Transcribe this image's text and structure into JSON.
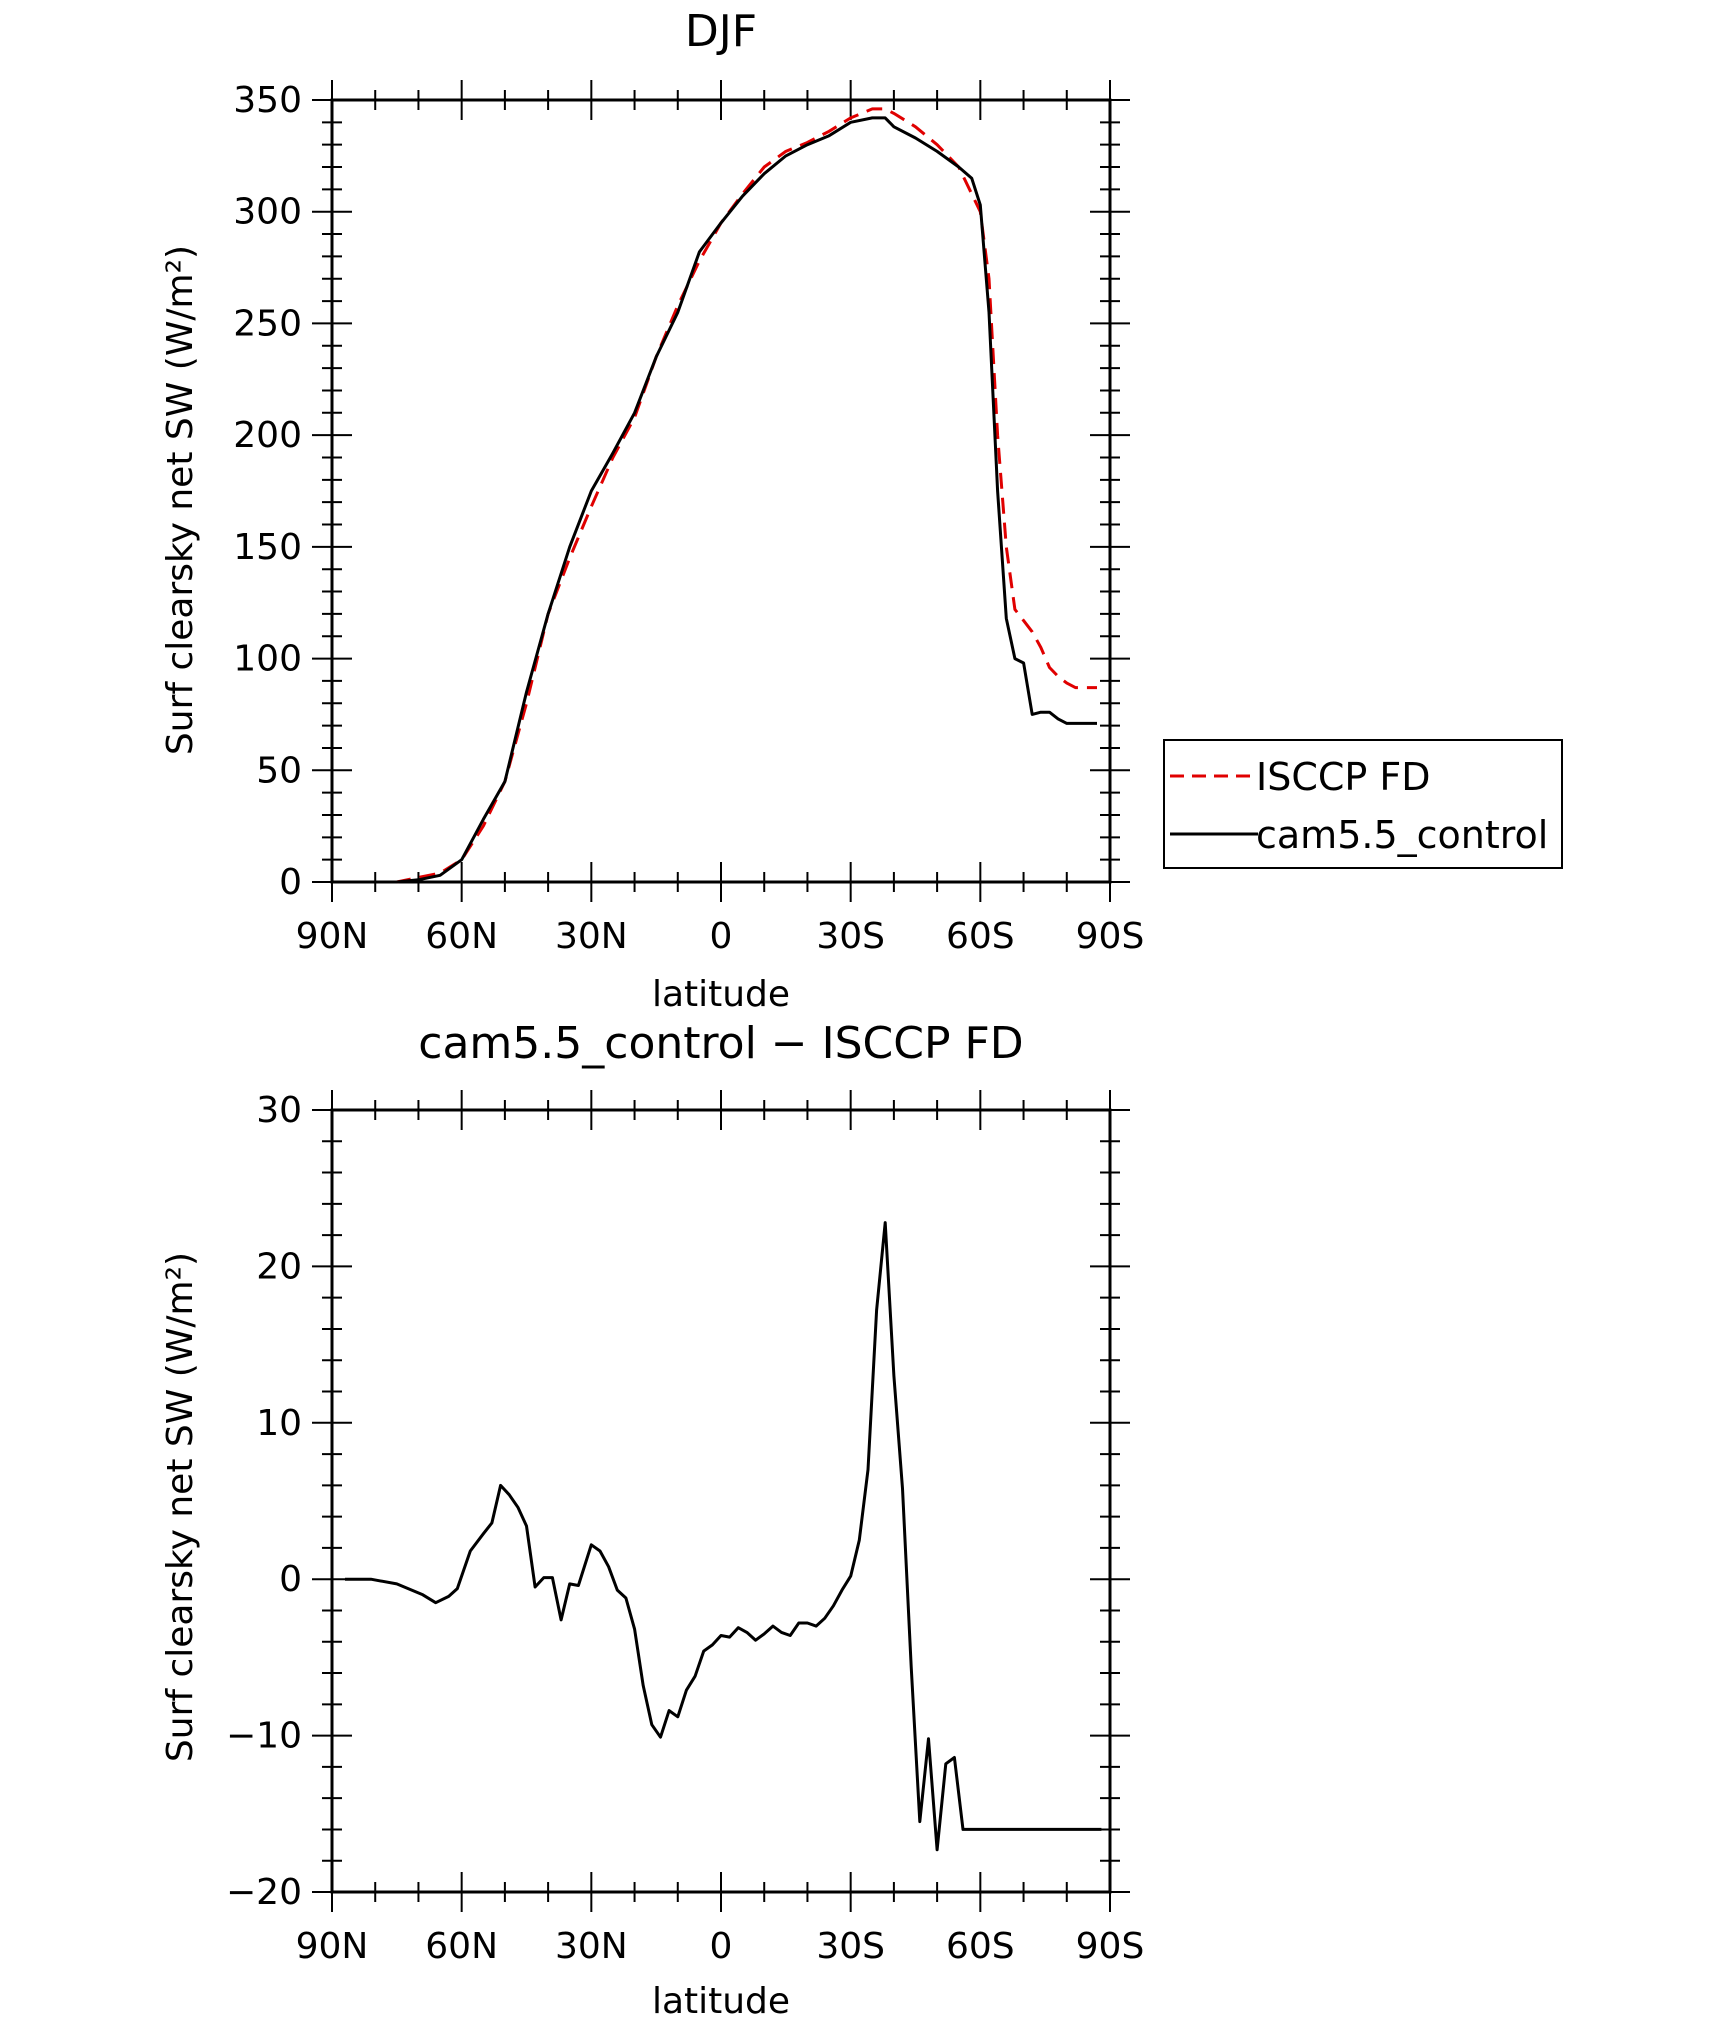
{
  "chart_data": [
    {
      "type": "line",
      "title": "DJF",
      "xlabel": "latitude",
      "ylabel": "Surf clearsky net SW (W/m²)",
      "ylim": [
        0,
        350
      ],
      "yticks": [
        0,
        50,
        100,
        150,
        200,
        250,
        300,
        350
      ],
      "xticks": [
        {
          "value": 90,
          "label": "90N"
        },
        {
          "value": 60,
          "label": "60N"
        },
        {
          "value": 30,
          "label": "30N"
        },
        {
          "value": 0,
          "label": "0"
        },
        {
          "value": -30,
          "label": "30S"
        },
        {
          "value": -60,
          "label": "60S"
        },
        {
          "value": -90,
          "label": "90S"
        }
      ],
      "xlim": [
        90,
        -90
      ],
      "legend_position": "right",
      "series": [
        {
          "name": "ISCCP FD",
          "color": "#e00000",
          "dash": "dashed",
          "x": [
            87,
            80,
            75,
            70,
            65,
            60,
            55,
            50,
            45,
            40,
            35,
            30,
            25,
            20,
            15,
            10,
            5,
            0,
            -5,
            -10,
            -15,
            -20,
            -25,
            -30,
            -35,
            -38,
            -40,
            -45,
            -50,
            -55,
            -60,
            -62,
            -64,
            -66,
            -68,
            -70,
            -72,
            -74,
            -76,
            -78,
            -80,
            -82,
            -84,
            -87
          ],
          "y": [
            0,
            0,
            0,
            2,
            4,
            10,
            25,
            45,
            80,
            120,
            145,
            168,
            190,
            208,
            235,
            258,
            278,
            295,
            308,
            320,
            327,
            331,
            336,
            342,
            346,
            346,
            344,
            338,
            330,
            320,
            300,
            270,
            200,
            150,
            122,
            117,
            112,
            105,
            96,
            92,
            89,
            87,
            87,
            87
          ]
        },
        {
          "name": "cam5.5_control",
          "color": "#000000",
          "dash": "solid",
          "x": [
            87,
            80,
            75,
            70,
            65,
            60,
            55,
            50,
            45,
            40,
            35,
            30,
            25,
            20,
            15,
            10,
            5,
            0,
            -5,
            -10,
            -15,
            -20,
            -25,
            -30,
            -35,
            -38,
            -40,
            -45,
            -50,
            -55,
            -58,
            -60,
            -62,
            -64,
            -66,
            -68,
            -70,
            -72,
            -74,
            -76,
            -78,
            -80,
            -82,
            -84,
            -87
          ],
          "y": [
            0,
            0,
            0,
            1,
            3,
            10,
            28,
            45,
            85,
            120,
            150,
            175,
            192,
            210,
            235,
            255,
            282,
            295,
            307,
            317,
            325,
            330,
            334,
            340,
            342,
            342,
            338,
            333,
            327,
            320,
            315,
            303,
            255,
            175,
            118,
            100,
            98,
            75,
            76,
            76,
            73,
            71,
            71,
            71,
            71
          ]
        }
      ]
    },
    {
      "type": "line",
      "title": "cam5.5_control − ISCCP FD",
      "xlabel": "latitude",
      "ylabel": "Surf clearsky net SW (W/m²)",
      "ylim": [
        -20,
        30
      ],
      "yticks": [
        -20,
        -10,
        0,
        10,
        20,
        30
      ],
      "xlim": [
        90,
        -90
      ],
      "series": [
        {
          "name": "",
          "color": "#000000",
          "dash": "solid",
          "x": [
            87,
            81,
            75,
            69,
            66,
            63,
            61,
            58,
            55,
            53,
            51,
            49,
            47,
            45,
            43,
            41,
            39,
            37,
            35,
            33,
            30,
            28,
            26,
            24,
            22,
            20,
            18,
            16,
            14,
            12,
            10,
            8,
            6,
            4,
            2,
            0,
            -2,
            -4,
            -6,
            -8,
            -10,
            -12,
            -14,
            -16,
            -18,
            -20,
            -22,
            -24,
            -26,
            -28,
            -30,
            -32,
            -34,
            -36,
            -38,
            -40,
            -42,
            -44,
            -46,
            -48,
            -50,
            -52,
            -54,
            -56,
            -58,
            -60,
            -62,
            -64,
            -66,
            -68,
            -70,
            -72,
            -74,
            -76,
            -78,
            -80,
            -82,
            -84,
            -86,
            -88
          ],
          "y": [
            0,
            0,
            -0.3,
            -1,
            -1.5,
            -1.1,
            -0.6,
            1.8,
            2.9,
            3.6,
            6.0,
            5.4,
            4.6,
            3.4,
            -0.5,
            0.1,
            0.1,
            -2.6,
            -0.3,
            -0.4,
            2.2,
            1.8,
            0.8,
            -0.7,
            -1.2,
            -3.2,
            -6.8,
            -9.3,
            -10.1,
            -8.4,
            -8.8,
            -7.1,
            -6.2,
            -4.6,
            -4.2,
            -3.6,
            -3.7,
            -3.1,
            -3.4,
            -3.9,
            -3.5,
            -3.0,
            -3.4,
            -3.6,
            -2.8,
            -2.8,
            -3.0,
            -2.5,
            -1.7,
            -0.7,
            0.2,
            2.5,
            7.0,
            17.2,
            22.8,
            13.0,
            5.8,
            -5.6,
            -15.5,
            -10.2,
            -17.3,
            -11.8,
            -11.4,
            -16.0,
            -16.0,
            -16.0,
            -16.0,
            -16.0,
            -16.0,
            -16.0,
            -16.0,
            -16.0,
            -16.0,
            -16.0,
            -16.0,
            -16.0,
            -16.0,
            -16.0,
            -16.0,
            -16.0
          ]
        }
      ]
    }
  ]
}
